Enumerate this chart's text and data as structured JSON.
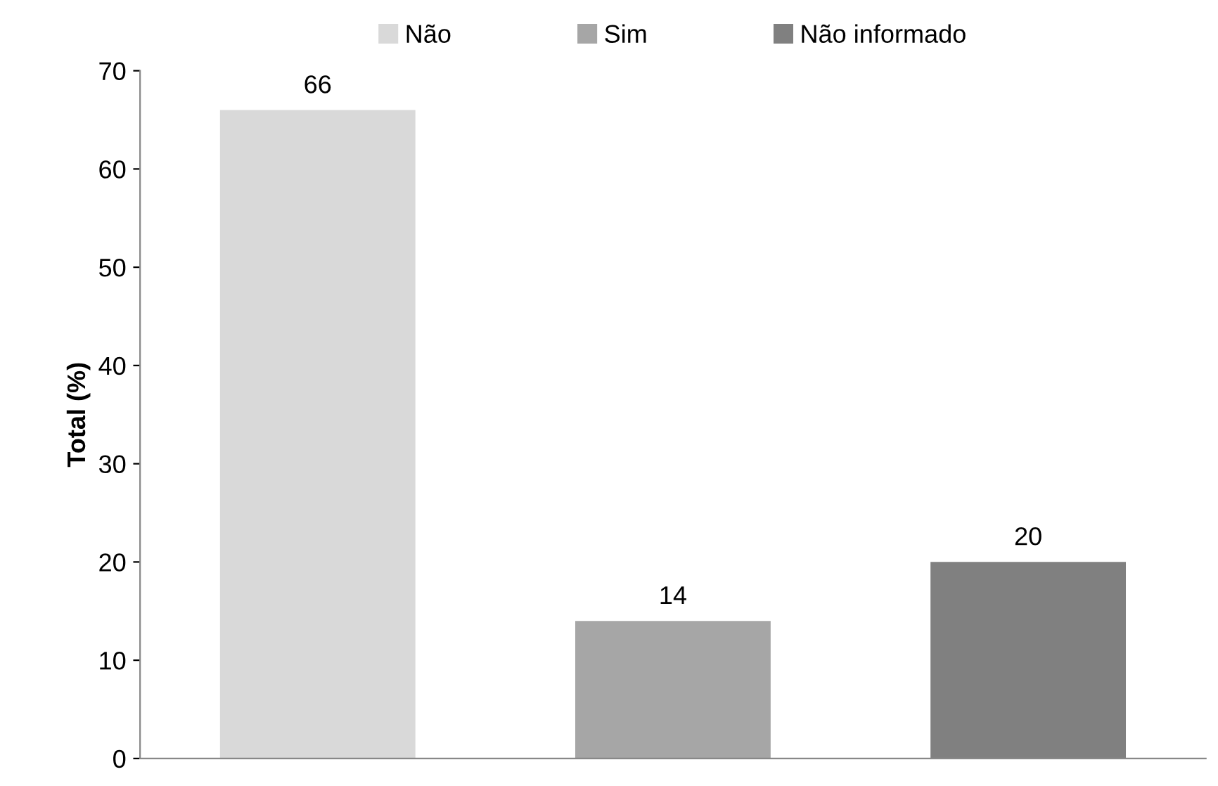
{
  "chart_data": {
    "type": "bar",
    "ylabel": "Total (%)",
    "categories": [
      null,
      null,
      null
    ],
    "series": [
      {
        "name": "Não",
        "color": "#d9d9d9",
        "values": [
          66,
          null,
          null
        ]
      },
      {
        "name": "Sim",
        "color": "#a6a6a6",
        "values": [
          null,
          14,
          null
        ]
      },
      {
        "name": "Não informado",
        "color": "#808080",
        "values": [
          null,
          null,
          20
        ]
      }
    ],
    "ylim": [
      0,
      70
    ],
    "yticks": [
      0,
      10,
      20,
      30,
      40,
      50,
      60,
      70
    ],
    "grid": false,
    "legend": "top",
    "data_labels": true
  }
}
